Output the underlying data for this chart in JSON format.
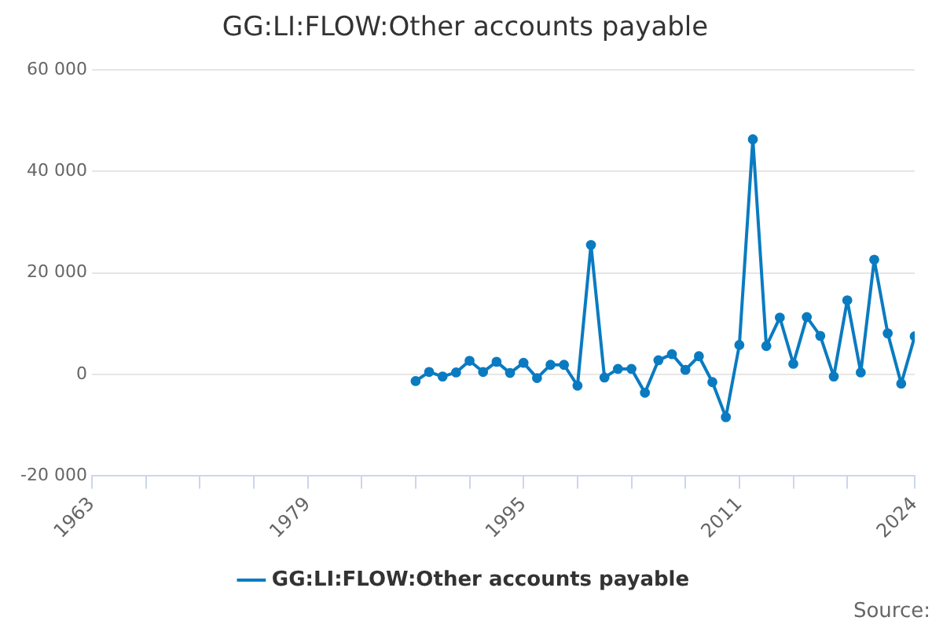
{
  "chart_data": {
    "type": "line",
    "title": "GG:LI:FLOW:Other accounts payable",
    "x": [
      1987,
      1988,
      1989,
      1990,
      1991,
      1992,
      1993,
      1994,
      1995,
      1996,
      1997,
      1998,
      1999,
      2000,
      2001,
      2002,
      2003,
      2004,
      2005,
      2006,
      2007,
      2008,
      2009,
      2010,
      2011,
      2012,
      2013,
      2014,
      2015,
      2016,
      2017,
      2018,
      2019,
      2020,
      2021,
      2022,
      2023,
      2024
    ],
    "series": [
      {
        "name": "GG:LI:FLOW:Other accounts payable",
        "color": "#0a7bc1",
        "values": [
          -1300,
          500,
          -400,
          400,
          2700,
          500,
          2500,
          300,
          2300,
          -700,
          1900,
          1900,
          -2200,
          25500,
          -600,
          1100,
          1100,
          -3600,
          2800,
          4000,
          900,
          3600,
          -1500,
          -8400,
          5800,
          46300,
          5600,
          11200,
          2100,
          11300,
          7600,
          -400,
          14600,
          400,
          22600,
          8100,
          -1800,
          7500
        ]
      }
    ],
    "xlim": [
      1963,
      2024
    ],
    "xticks": [
      1963,
      {
        "value": 1967,
        "label": null
      },
      {
        "value": 1971,
        "label": null
      },
      {
        "value": 1975,
        "label": null
      },
      1979,
      {
        "value": 1983,
        "label": null
      },
      {
        "value": 1987,
        "label": null
      },
      {
        "value": 1991,
        "label": null
      },
      1995,
      {
        "value": 1999,
        "label": null
      },
      {
        "value": 2003,
        "label": null
      },
      {
        "value": 2007,
        "label": null
      },
      2011,
      {
        "value": 2015,
        "label": null
      },
      {
        "value": 2019,
        "label": null
      },
      2024
    ],
    "ylim": [
      -20000,
      60000
    ],
    "yticks": [
      {
        "value": -20000,
        "label": "-20 000"
      },
      {
        "value": 0,
        "label": "0"
      },
      {
        "value": 20000,
        "label": "20 000"
      },
      {
        "value": 40000,
        "label": "40 000"
      },
      {
        "value": 60000,
        "label": "60 000"
      }
    ],
    "grid": "y",
    "legend": "bottom",
    "marker": "circle",
    "line_style": "solid",
    "annotations": [
      "Source:"
    ]
  }
}
